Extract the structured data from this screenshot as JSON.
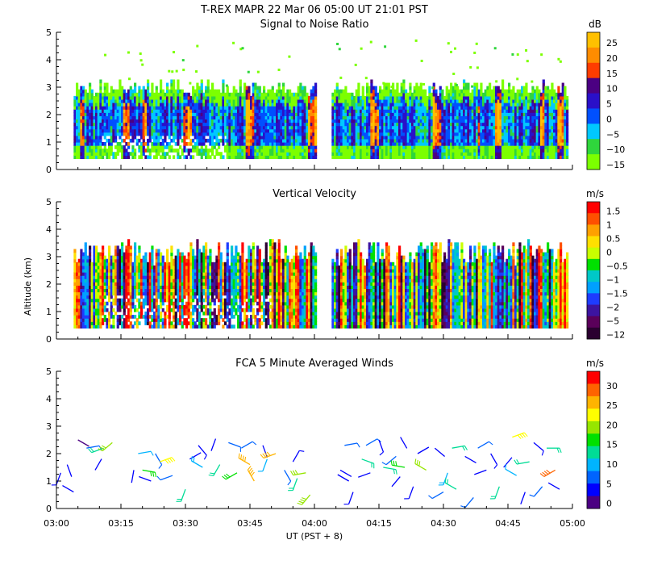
{
  "header": {
    "title": "T-REX   MAPR 22 Mar 06   05:00 UT   21:01   PST"
  },
  "x_axis": {
    "label": "UT  (PST + 8)",
    "ticks": [
      "03:00",
      "03:15",
      "03:30",
      "03:45",
      "04:00",
      "04:15",
      "04:30",
      "04:45",
      "05:00"
    ],
    "range_minutes": [
      0,
      120
    ]
  },
  "y_axis": {
    "label": "Altitude (km)",
    "ticks": [
      "0",
      "1",
      "2",
      "3",
      "4",
      "5"
    ],
    "range_km": [
      0,
      5
    ]
  },
  "colors": {
    "snr_scale": [
      "#7cff00",
      "#2fd63c",
      "#00c8ff",
      "#0050ff",
      "#2a10c8",
      "#4b0082",
      "#ff3c00",
      "#ff8c00",
      "#ffc000"
    ],
    "velocity_scale": [
      "#2a0030",
      "#5a005a",
      "#3c14a0",
      "#1e3cff",
      "#00a0ff",
      "#00c8c8",
      "#00e000",
      "#c8ff00",
      "#ffe000",
      "#ffa000",
      "#ff5000",
      "#ff0000"
    ],
    "wind_scale": [
      "#4b0082",
      "#0000ff",
      "#0064ff",
      "#00b4ff",
      "#00dc96",
      "#00e000",
      "#96e600",
      "#ffff00",
      "#ffb400",
      "#ff6400",
      "#ff0000"
    ]
  },
  "chart_data": [
    {
      "type": "heatmap",
      "title": "Signal to Noise Ratio",
      "colorbar_unit": "dB",
      "colorbar_labels": [
        "25",
        "20",
        "15",
        "10",
        "5",
        "0",
        "−5",
        "−10",
        "−15"
      ],
      "value_range_db": [
        -15,
        30
      ],
      "data_gap_minutes": [
        60,
        64
      ],
      "coverage_top_km": 3.0,
      "coverage_bottom_km": 0.3
    },
    {
      "type": "heatmap",
      "title": "Vertical Velocity",
      "colorbar_unit": "m/s",
      "colorbar_labels": [
        "1.5",
        "1",
        "0.5",
        "0",
        "−0.5",
        "−1",
        "−1.5",
        "−2",
        "−5",
        "−12"
      ],
      "value_range_ms": [
        -12,
        2
      ],
      "data_gap_minutes": [
        60,
        64
      ],
      "coverage_top_km": 3.0,
      "coverage_bottom_km": 0.3
    },
    {
      "type": "scatter",
      "title": "FCA 5 Minute Averaged Winds",
      "colorbar_unit": "m/s",
      "colorbar_labels": [
        "30",
        "25",
        "20",
        "15",
        "10",
        "5",
        "0"
      ],
      "value_range_ms": [
        0,
        32
      ],
      "points": [
        {
          "t": 1,
          "alt": 1.3,
          "speed": 5,
          "dir": 200
        },
        {
          "t": 2.5,
          "alt": 1.6,
          "speed": 3,
          "dir": 160
        },
        {
          "t": 4,
          "alt": 0.6,
          "speed": 4,
          "dir": 300
        },
        {
          "t": 5,
          "alt": 2.5,
          "speed": 2,
          "dir": 120
        },
        {
          "t": 7,
          "alt": 2.2,
          "speed": 8,
          "dir": 80
        },
        {
          "t": 9,
          "alt": 1.4,
          "speed": 3,
          "dir": 30
        },
        {
          "t": 11,
          "alt": 2.2,
          "speed": 12,
          "dir": 250
        },
        {
          "t": 13,
          "alt": 2.4,
          "speed": 18,
          "dir": 230
        },
        {
          "t": 18,
          "alt": 1.4,
          "speed": 4,
          "dir": 190
        },
        {
          "t": 19,
          "alt": 2.0,
          "speed": 9,
          "dir": 80
        },
        {
          "t": 20,
          "alt": 1.4,
          "speed": 16,
          "dir": 100
        },
        {
          "t": 22,
          "alt": 1.0,
          "speed": 4,
          "dir": 290
        },
        {
          "t": 23,
          "alt": 2.0,
          "speed": 6,
          "dir": 150
        },
        {
          "t": 24,
          "alt": 1.7,
          "speed": 22,
          "dir": 70
        },
        {
          "t": 27,
          "alt": 1.2,
          "speed": 6,
          "dir": 250
        },
        {
          "t": 30,
          "alt": 0.7,
          "speed": 14,
          "dir": 200
        },
        {
          "t": 31,
          "alt": 1.8,
          "speed": 3,
          "dir": 60
        },
        {
          "t": 33,
          "alt": 2.3,
          "speed": 5,
          "dir": 140
        },
        {
          "t": 34,
          "alt": 1.5,
          "speed": 10,
          "dir": 300
        },
        {
          "t": 36,
          "alt": 2.1,
          "speed": 4,
          "dir": 20
        },
        {
          "t": 38,
          "alt": 1.6,
          "speed": 12,
          "dir": 210
        },
        {
          "t": 40,
          "alt": 2.4,
          "speed": 8,
          "dir": 110
        },
        {
          "t": 42,
          "alt": 1.3,
          "speed": 15,
          "dir": 240
        },
        {
          "t": 43,
          "alt": 2.2,
          "speed": 6,
          "dir": 60
        },
        {
          "t": 45,
          "alt": 1.6,
          "speed": 24,
          "dir": 300
        },
        {
          "t": 46,
          "alt": 1.0,
          "speed": 26,
          "dir": 330
        },
        {
          "t": 48,
          "alt": 2.3,
          "speed": 4,
          "dir": 160
        },
        {
          "t": 49,
          "alt": 1.8,
          "speed": 9,
          "dir": 200
        },
        {
          "t": 51,
          "alt": 2.0,
          "speed": 26,
          "dir": 250
        },
        {
          "t": 53,
          "alt": 1.4,
          "speed": 8,
          "dir": 150
        },
        {
          "t": 55,
          "alt": 1.7,
          "speed": 5,
          "dir": 30
        },
        {
          "t": 56,
          "alt": 1.1,
          "speed": 12,
          "dir": 200
        },
        {
          "t": 58,
          "alt": 1.3,
          "speed": 18,
          "dir": 260
        },
        {
          "t": 59,
          "alt": 0.5,
          "speed": 20,
          "dir": 220
        },
        {
          "t": 66,
          "alt": 1.4,
          "speed": 4,
          "dir": 120
        },
        {
          "t": 67,
          "alt": 2.3,
          "speed": 6,
          "dir": 80
        },
        {
          "t": 68,
          "alt": 1.0,
          "speed": 3,
          "dir": 300
        },
        {
          "t": 69,
          "alt": 0.6,
          "speed": 5,
          "dir": 200
        },
        {
          "t": 71,
          "alt": 1.8,
          "speed": 14,
          "dir": 110
        },
        {
          "t": 72,
          "alt": 2.3,
          "speed": 7,
          "dir": 60
        },
        {
          "t": 73,
          "alt": 1.3,
          "speed": 4,
          "dir": 250
        },
        {
          "t": 75,
          "alt": 2.5,
          "speed": 5,
          "dir": 160
        },
        {
          "t": 76,
          "alt": 1.5,
          "speed": 12,
          "dir": 100
        },
        {
          "t": 78,
          "alt": 0.8,
          "speed": 3,
          "dir": 40
        },
        {
          "t": 79,
          "alt": 1.9,
          "speed": 6,
          "dir": 230
        },
        {
          "t": 80,
          "alt": 2.6,
          "speed": 4,
          "dir": 150
        },
        {
          "t": 81,
          "alt": 1.5,
          "speed": 16,
          "dir": 280
        },
        {
          "t": 83,
          "alt": 0.8,
          "speed": 5,
          "dir": 200
        },
        {
          "t": 84,
          "alt": 2.0,
          "speed": 3,
          "dir": 60
        },
        {
          "t": 86,
          "alt": 1.4,
          "speed": 18,
          "dir": 300
        },
        {
          "t": 88,
          "alt": 2.2,
          "speed": 4,
          "dir": 130
        },
        {
          "t": 90,
          "alt": 0.6,
          "speed": 8,
          "dir": 240
        },
        {
          "t": 91,
          "alt": 1.3,
          "speed": 10,
          "dir": 200
        },
        {
          "t": 92,
          "alt": 2.2,
          "speed": 12,
          "dir": 80
        },
        {
          "t": 93,
          "alt": 0.7,
          "speed": 14,
          "dir": 300
        },
        {
          "t": 95,
          "alt": 1.9,
          "speed": 4,
          "dir": 120
        },
        {
          "t": 97,
          "alt": 0.4,
          "speed": 6,
          "dir": 220
        },
        {
          "t": 98,
          "alt": 2.2,
          "speed": 7,
          "dir": 60
        },
        {
          "t": 100,
          "alt": 1.4,
          "speed": 3,
          "dir": 250
        },
        {
          "t": 101,
          "alt": 2.0,
          "speed": 5,
          "dir": 150
        },
        {
          "t": 103,
          "alt": 0.8,
          "speed": 12,
          "dir": 200
        },
        {
          "t": 104,
          "alt": 1.5,
          "speed": 4,
          "dir": 40
        },
        {
          "t": 106,
          "alt": 2.6,
          "speed": 22,
          "dir": 70
        },
        {
          "t": 107,
          "alt": 1.2,
          "speed": 9,
          "dir": 300
        },
        {
          "t": 109,
          "alt": 0.6,
          "speed": 4,
          "dir": 200
        },
        {
          "t": 110,
          "alt": 1.7,
          "speed": 14,
          "dir": 260
        },
        {
          "t": 111,
          "alt": 2.4,
          "speed": 5,
          "dir": 130
        },
        {
          "t": 113,
          "alt": 0.8,
          "speed": 8,
          "dir": 220
        },
        {
          "t": 114,
          "alt": 2.2,
          "speed": 12,
          "dir": 90
        },
        {
          "t": 116,
          "alt": 1.4,
          "speed": 28,
          "dir": 240
        },
        {
          "t": 117,
          "alt": 0.7,
          "speed": 4,
          "dir": 300
        }
      ]
    }
  ]
}
